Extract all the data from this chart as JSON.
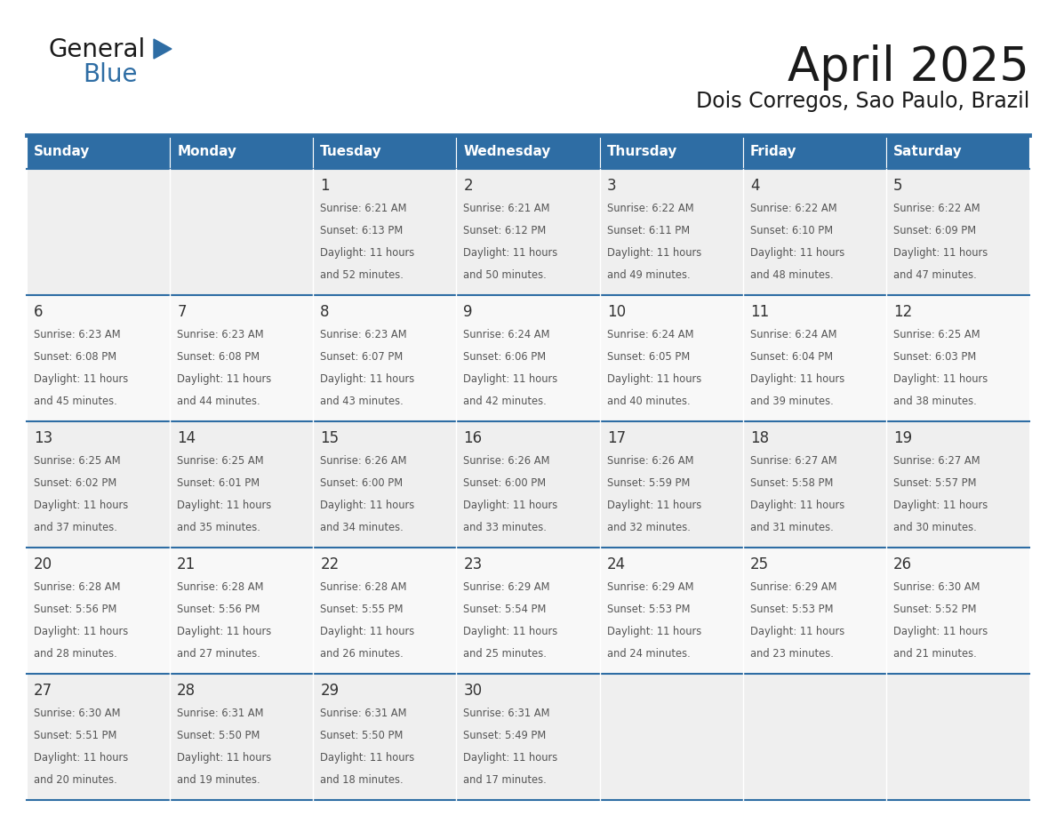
{
  "title": "April 2025",
  "subtitle": "Dois Corregos, Sao Paulo, Brazil",
  "header_bg": "#2E6DA4",
  "header_text_color": "#FFFFFF",
  "cell_bg_odd": "#EFEFEF",
  "cell_bg_even": "#F8F8F8",
  "day_number_color": "#333333",
  "cell_text_color": "#555555",
  "grid_line_color": "#2E6DA4",
  "separator_color": "#2E6DA4",
  "days_of_week": [
    "Sunday",
    "Monday",
    "Tuesday",
    "Wednesday",
    "Thursday",
    "Friday",
    "Saturday"
  ],
  "logo_general_color": "#1a1a1a",
  "logo_blue_color": "#2E6DA4",
  "title_color": "#1a1a1a",
  "subtitle_color": "#1a1a1a",
  "weeks": [
    [
      {
        "day": "",
        "sunrise": "",
        "sunset": "",
        "daylight": ""
      },
      {
        "day": "",
        "sunrise": "",
        "sunset": "",
        "daylight": ""
      },
      {
        "day": "1",
        "sunrise": "6:21 AM",
        "sunset": "6:13 PM",
        "daylight": "11 hours and 52 minutes."
      },
      {
        "day": "2",
        "sunrise": "6:21 AM",
        "sunset": "6:12 PM",
        "daylight": "11 hours and 50 minutes."
      },
      {
        "day": "3",
        "sunrise": "6:22 AM",
        "sunset": "6:11 PM",
        "daylight": "11 hours and 49 minutes."
      },
      {
        "day": "4",
        "sunrise": "6:22 AM",
        "sunset": "6:10 PM",
        "daylight": "11 hours and 48 minutes."
      },
      {
        "day": "5",
        "sunrise": "6:22 AM",
        "sunset": "6:09 PM",
        "daylight": "11 hours and 47 minutes."
      }
    ],
    [
      {
        "day": "6",
        "sunrise": "6:23 AM",
        "sunset": "6:08 PM",
        "daylight": "11 hours and 45 minutes."
      },
      {
        "day": "7",
        "sunrise": "6:23 AM",
        "sunset": "6:08 PM",
        "daylight": "11 hours and 44 minutes."
      },
      {
        "day": "8",
        "sunrise": "6:23 AM",
        "sunset": "6:07 PM",
        "daylight": "11 hours and 43 minutes."
      },
      {
        "day": "9",
        "sunrise": "6:24 AM",
        "sunset": "6:06 PM",
        "daylight": "11 hours and 42 minutes."
      },
      {
        "day": "10",
        "sunrise": "6:24 AM",
        "sunset": "6:05 PM",
        "daylight": "11 hours and 40 minutes."
      },
      {
        "day": "11",
        "sunrise": "6:24 AM",
        "sunset": "6:04 PM",
        "daylight": "11 hours and 39 minutes."
      },
      {
        "day": "12",
        "sunrise": "6:25 AM",
        "sunset": "6:03 PM",
        "daylight": "11 hours and 38 minutes."
      }
    ],
    [
      {
        "day": "13",
        "sunrise": "6:25 AM",
        "sunset": "6:02 PM",
        "daylight": "11 hours and 37 minutes."
      },
      {
        "day": "14",
        "sunrise": "6:25 AM",
        "sunset": "6:01 PM",
        "daylight": "11 hours and 35 minutes."
      },
      {
        "day": "15",
        "sunrise": "6:26 AM",
        "sunset": "6:00 PM",
        "daylight": "11 hours and 34 minutes."
      },
      {
        "day": "16",
        "sunrise": "6:26 AM",
        "sunset": "6:00 PM",
        "daylight": "11 hours and 33 minutes."
      },
      {
        "day": "17",
        "sunrise": "6:26 AM",
        "sunset": "5:59 PM",
        "daylight": "11 hours and 32 minutes."
      },
      {
        "day": "18",
        "sunrise": "6:27 AM",
        "sunset": "5:58 PM",
        "daylight": "11 hours and 31 minutes."
      },
      {
        "day": "19",
        "sunrise": "6:27 AM",
        "sunset": "5:57 PM",
        "daylight": "11 hours and 30 minutes."
      }
    ],
    [
      {
        "day": "20",
        "sunrise": "6:28 AM",
        "sunset": "5:56 PM",
        "daylight": "11 hours and 28 minutes."
      },
      {
        "day": "21",
        "sunrise": "6:28 AM",
        "sunset": "5:56 PM",
        "daylight": "11 hours and 27 minutes."
      },
      {
        "day": "22",
        "sunrise": "6:28 AM",
        "sunset": "5:55 PM",
        "daylight": "11 hours and 26 minutes."
      },
      {
        "day": "23",
        "sunrise": "6:29 AM",
        "sunset": "5:54 PM",
        "daylight": "11 hours and 25 minutes."
      },
      {
        "day": "24",
        "sunrise": "6:29 AM",
        "sunset": "5:53 PM",
        "daylight": "11 hours and 24 minutes."
      },
      {
        "day": "25",
        "sunrise": "6:29 AM",
        "sunset": "5:53 PM",
        "daylight": "11 hours and 23 minutes."
      },
      {
        "day": "26",
        "sunrise": "6:30 AM",
        "sunset": "5:52 PM",
        "daylight": "11 hours and 21 minutes."
      }
    ],
    [
      {
        "day": "27",
        "sunrise": "6:30 AM",
        "sunset": "5:51 PM",
        "daylight": "11 hours and 20 minutes."
      },
      {
        "day": "28",
        "sunrise": "6:31 AM",
        "sunset": "5:50 PM",
        "daylight": "11 hours and 19 minutes."
      },
      {
        "day": "29",
        "sunrise": "6:31 AM",
        "sunset": "5:50 PM",
        "daylight": "11 hours and 18 minutes."
      },
      {
        "day": "30",
        "sunrise": "6:31 AM",
        "sunset": "5:49 PM",
        "daylight": "11 hours and 17 minutes."
      },
      {
        "day": "",
        "sunrise": "",
        "sunset": "",
        "daylight": ""
      },
      {
        "day": "",
        "sunrise": "",
        "sunset": "",
        "daylight": ""
      },
      {
        "day": "",
        "sunrise": "",
        "sunset": "",
        "daylight": ""
      }
    ]
  ]
}
